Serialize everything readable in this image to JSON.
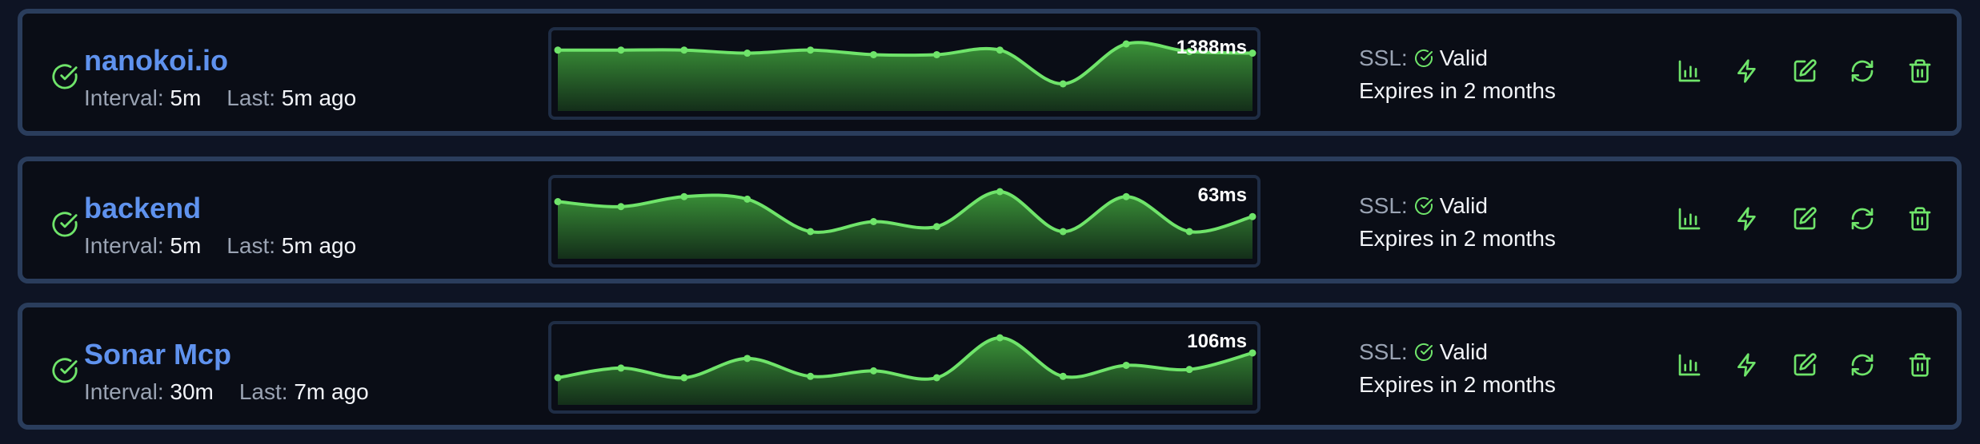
{
  "monitors": [
    {
      "name": "nanokoi.io",
      "interval_label": "Interval:",
      "interval": "5m",
      "last_label": "Last:",
      "last": "5m ago",
      "latency": "1388ms",
      "trend": [
        53,
        53,
        53,
        51,
        53,
        50,
        50,
        53,
        31,
        57,
        52,
        51
      ],
      "ssl_label": "SSL:",
      "ssl_status": "Valid",
      "expires": "Expires in 2 months"
    },
    {
      "name": "backend",
      "interval_label": "Interval:",
      "interval": "5m",
      "last_label": "Last:",
      "last": "5m ago",
      "latency": "63ms",
      "trend": [
        53,
        51,
        55,
        54,
        41,
        45,
        43,
        57,
        41,
        55,
        41,
        47
      ],
      "ssl_label": "SSL:",
      "ssl_status": "Valid",
      "expires": "Expires in 2 months"
    },
    {
      "name": "Sonar Mcp",
      "interval_label": "Interval:",
      "interval": "30m",
      "last_label": "Last:",
      "last": "7m ago",
      "latency": "106ms",
      "trend": [
        27,
        34,
        27,
        41,
        28,
        32,
        27,
        56,
        28,
        36,
        33,
        45
      ],
      "ssl_label": "SSL:",
      "ssl_status": "Valid",
      "expires": "Expires in 2 months"
    }
  ]
}
